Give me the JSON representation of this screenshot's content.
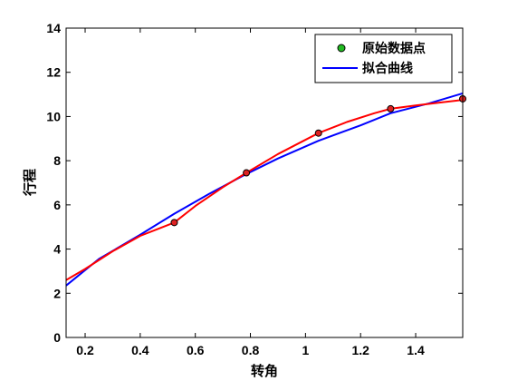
{
  "chart_data": {
    "type": "line",
    "xlabel": "转角",
    "ylabel": "行程",
    "xlim": [
      0.1309,
      1.5708
    ],
    "ylim": [
      0,
      14
    ],
    "x_ticks": [
      "0.2",
      "0.4",
      "0.6",
      "0.8",
      "1",
      "1.2",
      "1.4"
    ],
    "x_tick_values": [
      0.2,
      0.4,
      0.6,
      0.8,
      1.0,
      1.2,
      1.4
    ],
    "y_ticks": [
      "0",
      "2",
      "4",
      "6",
      "8",
      "10",
      "12",
      "14"
    ],
    "y_tick_values": [
      0,
      2,
      4,
      6,
      8,
      10,
      12,
      14
    ],
    "legend_position": "top-right",
    "series": [
      {
        "name": "原始数据点",
        "kind": "points",
        "marker_fill": "#dd2222",
        "marker_stroke": "#000000",
        "legend_marker_fill": "#22bb22",
        "points": [
          [
            0.5236,
            5.2
          ],
          [
            0.7854,
            7.45
          ],
          [
            1.0472,
            9.25
          ],
          [
            1.309,
            10.35
          ],
          [
            1.5708,
            10.8
          ]
        ]
      },
      {
        "name": "拟合曲线",
        "kind": "line",
        "color": "#0000ff",
        "points": [
          [
            0.1309,
            2.35
          ],
          [
            0.25,
            3.55
          ],
          [
            0.4,
            4.65
          ],
          [
            0.5236,
            5.6
          ],
          [
            0.65,
            6.5
          ],
          [
            0.7854,
            7.4
          ],
          [
            0.9,
            8.1
          ],
          [
            1.0472,
            8.9
          ],
          [
            1.2,
            9.6
          ],
          [
            1.309,
            10.15
          ],
          [
            1.45,
            10.6
          ],
          [
            1.5708,
            11.05
          ]
        ]
      },
      {
        "kind": "line",
        "color": "#ff0000",
        "points": [
          [
            0.1309,
            2.6
          ],
          [
            0.2,
            3.1
          ],
          [
            0.3,
            3.9
          ],
          [
            0.4,
            4.6
          ],
          [
            0.5236,
            5.2
          ],
          [
            0.6,
            5.95
          ],
          [
            0.7,
            6.8
          ],
          [
            0.7854,
            7.45
          ],
          [
            0.9,
            8.3
          ],
          [
            1.0472,
            9.25
          ],
          [
            1.15,
            9.75
          ],
          [
            1.25,
            10.15
          ],
          [
            1.309,
            10.35
          ],
          [
            1.4,
            10.5
          ],
          [
            1.5,
            10.65
          ],
          [
            1.5708,
            10.75
          ]
        ]
      }
    ]
  }
}
